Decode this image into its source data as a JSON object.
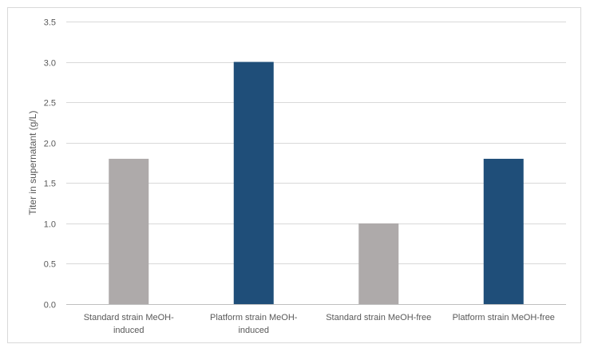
{
  "chart_data": {
    "type": "bar",
    "title": "",
    "xlabel": "",
    "ylabel": "Titer in supernatant (g/L)",
    "ylim": [
      0,
      3.5
    ],
    "y_ticks": [
      "0.0",
      "0.5",
      "1.0",
      "1.5",
      "2.0",
      "2.5",
      "3.0",
      "3.5"
    ],
    "grid": true,
    "legend": "none",
    "categories": [
      "Standard strain MeOH-induced",
      "Platform strain MeOH-induced",
      "Standard strain MeOH-free",
      "Platform strain MeOH-free"
    ],
    "category_label_lines": [
      [
        "Standard strain MeOH-",
        "induced"
      ],
      [
        "Platform strain MeOH-",
        "induced"
      ],
      [
        "Standard strain MeOH-free"
      ],
      [
        "Platform strain MeOH-free"
      ]
    ],
    "values": [
      1.8,
      3.0,
      1.0,
      1.8
    ],
    "colors": [
      "#aeaaaa",
      "#1f4e79",
      "#aeaaaa",
      "#1f4e79"
    ],
    "gridline_color": "#d9d9d9",
    "text_color": "#595959"
  }
}
